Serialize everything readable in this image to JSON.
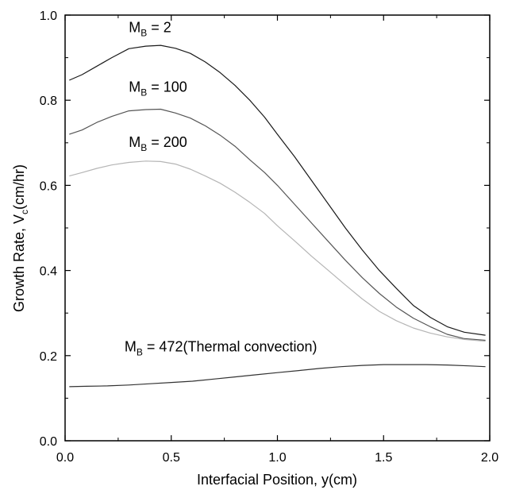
{
  "chart_data": {
    "type": "line",
    "xlabel": "Interfacial Position, y(cm)",
    "ylabel": {
      "main": "Growth Rate, V",
      "sub": "c",
      "tail": "(cm/hr)"
    },
    "xlim": [
      0.0,
      2.0
    ],
    "ylim": [
      0.0,
      1.0
    ],
    "xticks": [
      "0.0",
      "0.5",
      "1.0",
      "1.5",
      "2.0"
    ],
    "yticks": [
      "0.0",
      "0.2",
      "0.4",
      "0.6",
      "0.8",
      "1.0"
    ],
    "grid": false,
    "legend": "none",
    "series": [
      {
        "color": "#1a1a1a",
        "x": [
          0.02,
          0.08,
          0.15,
          0.22,
          0.3,
          0.38,
          0.45,
          0.52,
          0.59,
          0.66,
          0.73,
          0.8,
          0.87,
          0.94,
          1.0,
          1.08,
          1.16,
          1.24,
          1.32,
          1.4,
          1.48,
          1.56,
          1.64,
          1.72,
          1.8,
          1.88,
          1.98
        ],
        "y": [
          0.847,
          0.86,
          0.88,
          0.9,
          0.921,
          0.927,
          0.929,
          0.922,
          0.91,
          0.89,
          0.865,
          0.835,
          0.8,
          0.76,
          0.72,
          0.668,
          0.612,
          0.556,
          0.5,
          0.448,
          0.4,
          0.358,
          0.318,
          0.29,
          0.268,
          0.255,
          0.248
        ]
      },
      {
        "color": "#555555",
        "x": [
          0.02,
          0.08,
          0.15,
          0.22,
          0.3,
          0.38,
          0.45,
          0.52,
          0.59,
          0.66,
          0.73,
          0.8,
          0.87,
          0.94,
          1.0,
          1.08,
          1.16,
          1.24,
          1.32,
          1.4,
          1.48,
          1.56,
          1.64,
          1.72,
          1.8,
          1.88,
          1.98
        ],
        "y": [
          0.72,
          0.73,
          0.748,
          0.762,
          0.775,
          0.778,
          0.779,
          0.77,
          0.758,
          0.74,
          0.718,
          0.692,
          0.66,
          0.63,
          0.6,
          0.556,
          0.512,
          0.468,
          0.424,
          0.383,
          0.346,
          0.314,
          0.288,
          0.268,
          0.25,
          0.24,
          0.236
        ]
      },
      {
        "color": "#b5b5b5",
        "x": [
          0.02,
          0.08,
          0.15,
          0.22,
          0.3,
          0.38,
          0.45,
          0.52,
          0.59,
          0.66,
          0.73,
          0.8,
          0.87,
          0.94,
          1.0,
          1.08,
          1.16,
          1.24,
          1.32,
          1.4,
          1.48,
          1.56,
          1.64,
          1.72,
          1.8,
          1.88,
          1.98
        ],
        "y": [
          0.622,
          0.63,
          0.64,
          0.648,
          0.654,
          0.657,
          0.656,
          0.65,
          0.638,
          0.622,
          0.605,
          0.584,
          0.56,
          0.534,
          0.505,
          0.47,
          0.434,
          0.4,
          0.366,
          0.333,
          0.304,
          0.282,
          0.265,
          0.253,
          0.244,
          0.238,
          0.234
        ]
      },
      {
        "color": "#333333",
        "x": [
          0.02,
          0.1,
          0.2,
          0.3,
          0.4,
          0.5,
          0.6,
          0.7,
          0.8,
          0.9,
          1.0,
          1.1,
          1.2,
          1.3,
          1.4,
          1.5,
          1.6,
          1.7,
          1.8,
          1.9,
          1.98
        ],
        "y": [
          0.127,
          0.128,
          0.129,
          0.131,
          0.134,
          0.137,
          0.14,
          0.145,
          0.15,
          0.155,
          0.16,
          0.165,
          0.17,
          0.174,
          0.177,
          0.179,
          0.179,
          0.179,
          0.178,
          0.176,
          0.174
        ]
      }
    ],
    "annotations": [
      {
        "main": "M",
        "sub": "B",
        "tail": " = 2"
      },
      {
        "main": "M",
        "sub": "B",
        "tail": " = 100"
      },
      {
        "main": "M",
        "sub": "B",
        "tail": " = 200"
      },
      {
        "main": "M",
        "sub": "B",
        "tail": " = 472(Thermal convection)"
      }
    ]
  }
}
